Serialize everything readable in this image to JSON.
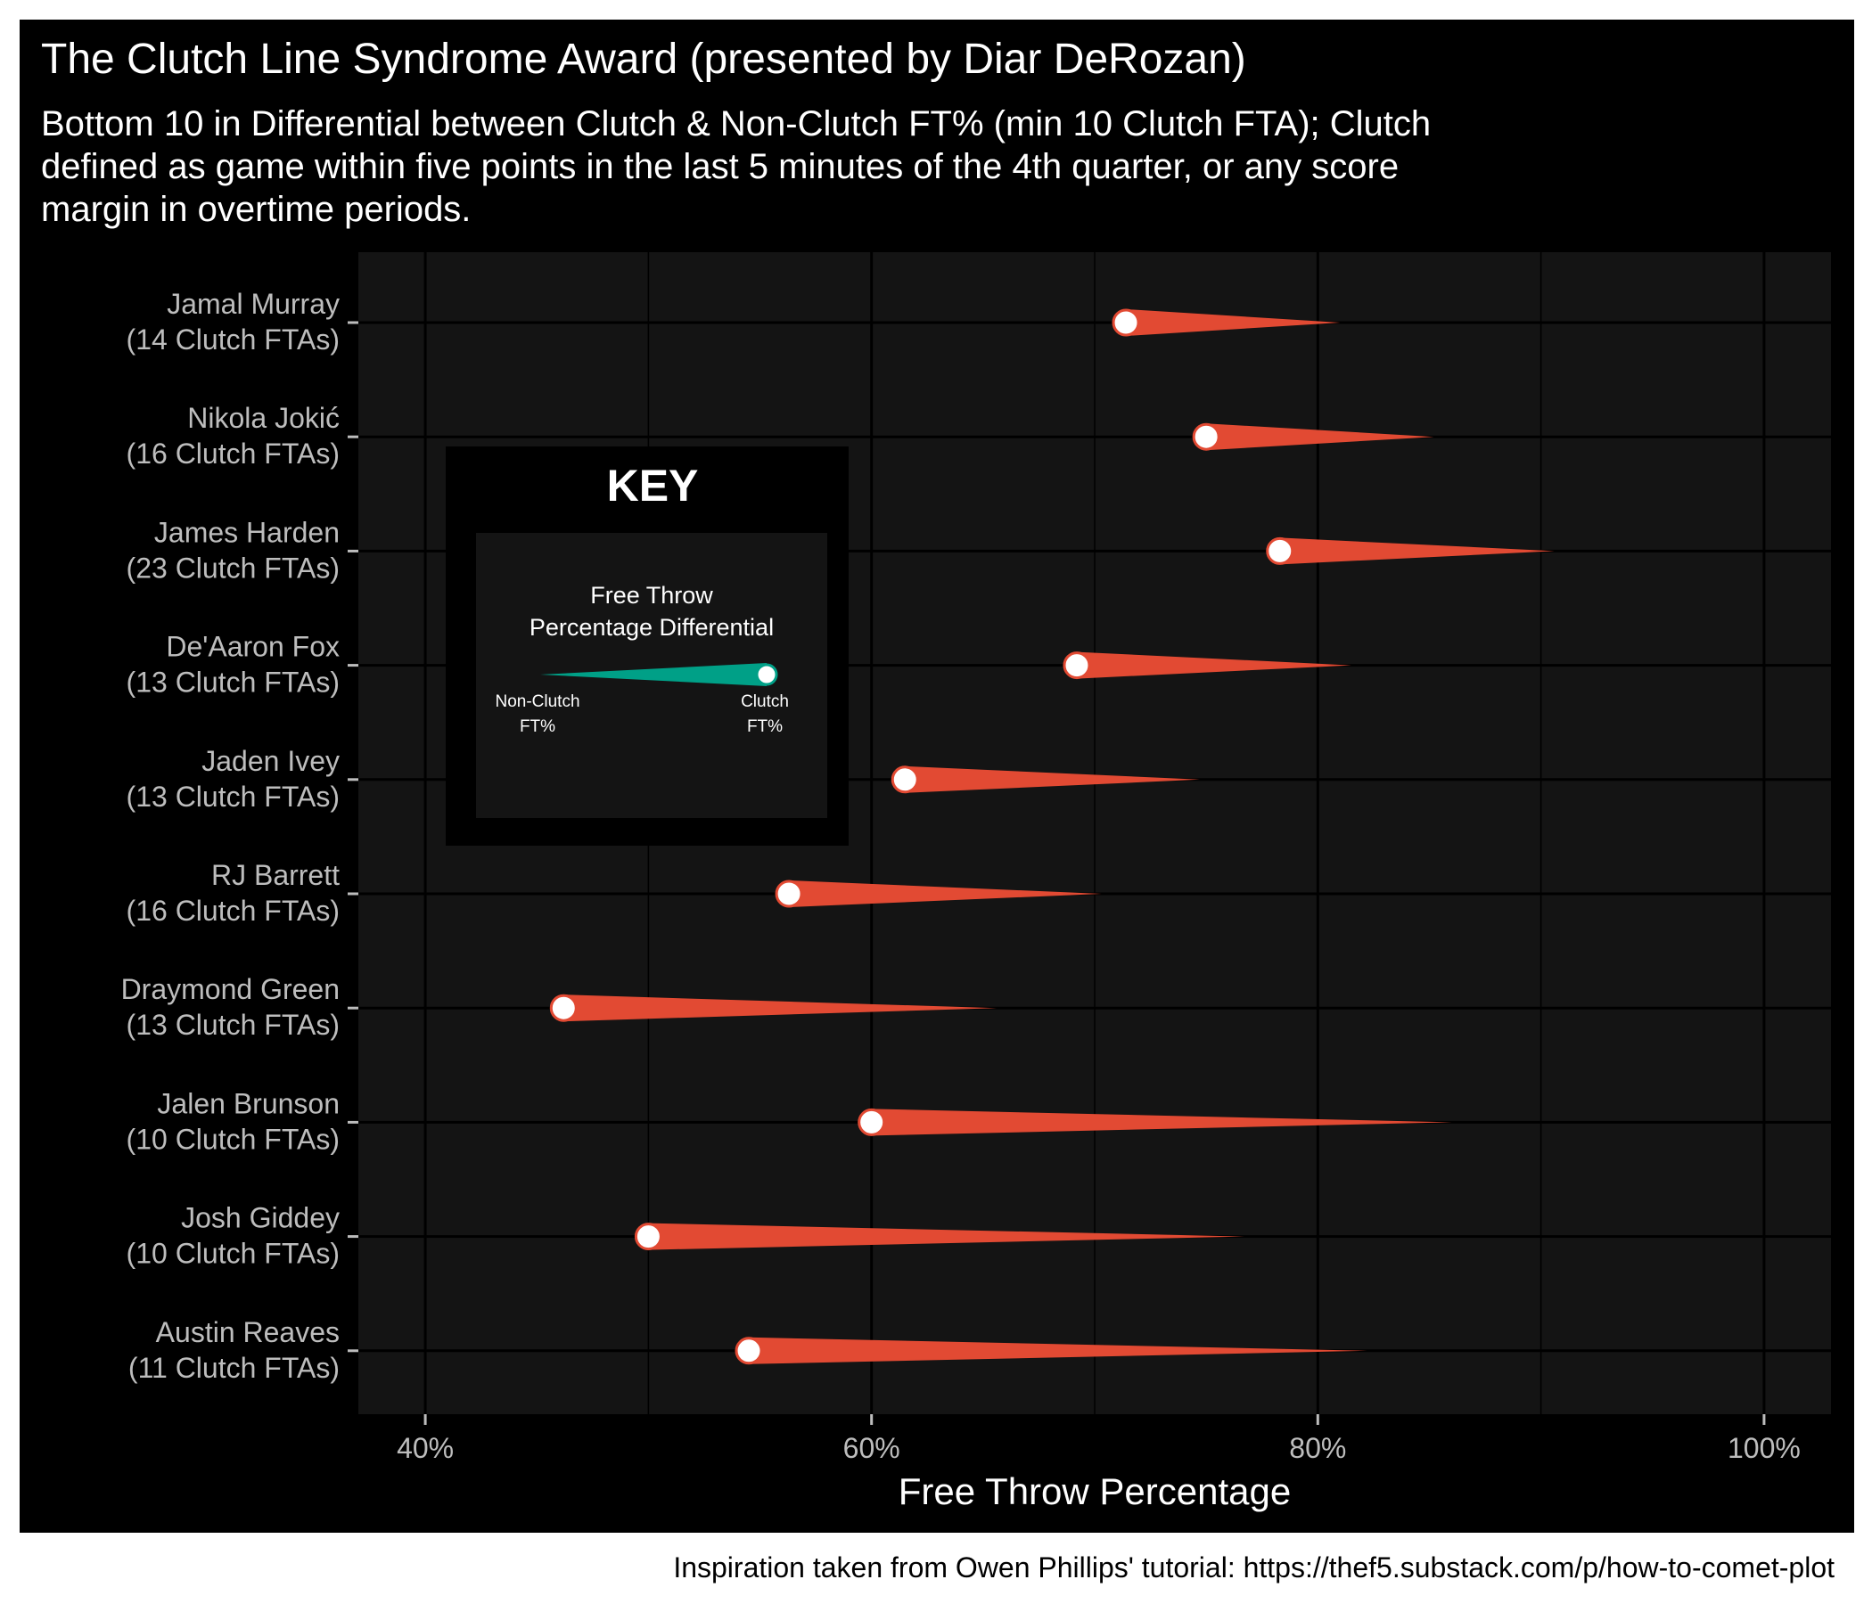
{
  "chart_data": {
    "type": "comet",
    "title": "The Clutch Line Syndrome Award (presented by Diar DeRozan)",
    "subtitle_lines": [
      "Bottom 10 in Differential between Clutch & Non-Clutch FT% (min 10 Clutch FTA); Clutch",
      "defined as game within five points in the last 5 minutes of the 4th quarter, or any score",
      "margin in overtime periods."
    ],
    "xlabel": "Free Throw Percentage",
    "xlim": [
      37,
      103
    ],
    "x_ticks": [
      40,
      60,
      80,
      100
    ],
    "x_tick_labels": [
      "40%",
      "60%",
      "80%",
      "100%"
    ],
    "grid": true,
    "colors": {
      "comet": "#e24a33",
      "key_comet": "#00a087",
      "dot": "#ffffff",
      "panel": "#141414",
      "background": "#000000"
    },
    "players": [
      {
        "name": "Jamal Murray",
        "fta_label": "(14 Clutch FTAs)",
        "non_clutch_ft_pct": 81.0,
        "clutch_ft_pct": 71.4
      },
      {
        "name": "Nikola Jokić",
        "fta_label": "(16 Clutch FTAs)",
        "non_clutch_ft_pct": 85.2,
        "clutch_ft_pct": 75.0
      },
      {
        "name": "James Harden",
        "fta_label": "(23 Clutch FTAs)",
        "non_clutch_ft_pct": 90.6,
        "clutch_ft_pct": 78.3
      },
      {
        "name": "De'Aaron Fox",
        "fta_label": "(13 Clutch FTAs)",
        "non_clutch_ft_pct": 81.5,
        "clutch_ft_pct": 69.2
      },
      {
        "name": "Jaden Ivey",
        "fta_label": "(13 Clutch FTAs)",
        "non_clutch_ft_pct": 74.7,
        "clutch_ft_pct": 61.5
      },
      {
        "name": "RJ Barrett",
        "fta_label": "(16 Clutch FTAs)",
        "non_clutch_ft_pct": 70.3,
        "clutch_ft_pct": 56.3
      },
      {
        "name": "Draymond Green",
        "fta_label": "(13 Clutch FTAs)",
        "non_clutch_ft_pct": 65.6,
        "clutch_ft_pct": 46.2
      },
      {
        "name": "Jalen Brunson",
        "fta_label": "(10 Clutch FTAs)",
        "non_clutch_ft_pct": 86.0,
        "clutch_ft_pct": 60.0
      },
      {
        "name": "Josh Giddey",
        "fta_label": "(10 Clutch FTAs)",
        "non_clutch_ft_pct": 76.7,
        "clutch_ft_pct": 50.0
      },
      {
        "name": "Austin Reaves",
        "fta_label": "(11 Clutch FTAs)",
        "non_clutch_ft_pct": 82.2,
        "clutch_ft_pct": 54.5
      }
    ]
  },
  "key": {
    "title": "KEY",
    "heading_lines": [
      "Free Throw",
      "Percentage Differential"
    ],
    "left_label_lines": [
      "Non-Clutch",
      "FT%"
    ],
    "right_label_lines": [
      "Clutch",
      "FT%"
    ]
  },
  "caption": "Inspiration taken from Owen Phillips' tutorial: https://thef5.substack.com/p/how-to-comet-plot"
}
